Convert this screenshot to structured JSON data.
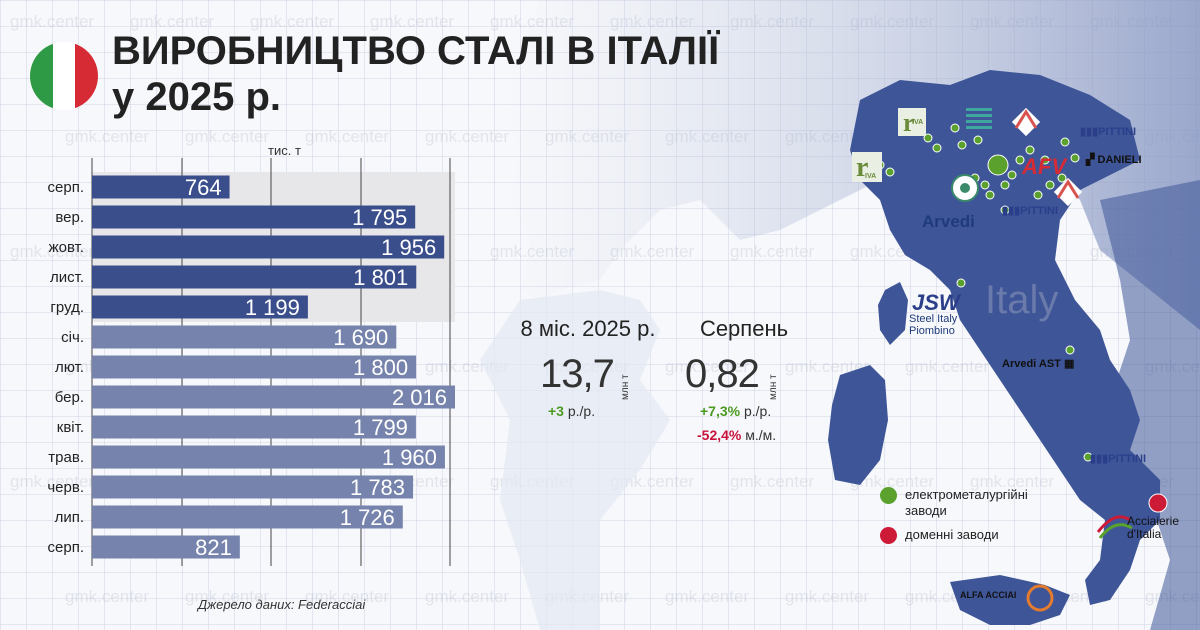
{
  "title_line1": "ВИРОБНИЦТВО СТАЛІ В ІТАЛІЇ",
  "title_line2": "у 2025 р.",
  "unit": "тис. т",
  "source": "Джерело даних: Federacciai",
  "colors": {
    "dark_bar": "#3b4e8c",
    "light_bar": "#7683ac",
    "land": "#3e5598",
    "green": "#5aa12e",
    "red": "#cc1a37"
  },
  "chart_data": {
    "type": "bar",
    "orientation": "horizontal",
    "unit": "тис. т",
    "categories": [
      "серп.",
      "вер.",
      "жовт.",
      "лист.",
      "груд.",
      "січ.",
      "лют.",
      "бер.",
      "квіт.",
      "трав.",
      "черв.",
      "лип.",
      "серп."
    ],
    "value_labels": [
      "764",
      "1 795",
      "1 956",
      "1 801",
      "1 199",
      "1 690",
      "1 800",
      "2 016",
      "1 799",
      "1 960",
      "1 783",
      "1 726",
      "821"
    ],
    "values": [
      764,
      1795,
      1956,
      1801,
      1199,
      1690,
      1800,
      2016,
      1799,
      1960,
      1783,
      1726,
      821
    ],
    "highlighted_rows": [
      0,
      1,
      2,
      3,
      4
    ],
    "xlim": [
      0,
      2016
    ],
    "grid": true
  },
  "kpi": {
    "period_label": "8 міс. 2025 р.",
    "period_value": "13,7",
    "period_unit": "млн т",
    "period_change_value": "+3",
    "period_change_suffix": " р./р.",
    "month_label": "Серпень",
    "month_value": "0,82",
    "month_unit": "млн т",
    "month_change_yoy_value": "+7,3%",
    "month_change_yoy_suffix": " р./р.",
    "month_change_mom_value": "-52,4%",
    "month_change_mom_suffix": " м./м."
  },
  "map": {
    "country_label": "Italy",
    "companies": {
      "riva": "IVA",
      "afv": "AFV",
      "pittini": "PITTINI",
      "danieli": "DANIELI",
      "arvedi": "Arvedi",
      "jsw_logo": "JSW",
      "jsw_name_line1": "Steel Italy",
      "jsw_name_line2": "Piombino",
      "arvedi_ast": "Arvedi AST",
      "acciaierie_line1": "Acciaierie",
      "acciaierie_line2": "d'Italia",
      "alfa": "ALFA ACCIAI"
    }
  },
  "legend": {
    "electric": "електрометалургійні заводи",
    "blast": "доменні заводи"
  },
  "watermark": "gmk.center"
}
